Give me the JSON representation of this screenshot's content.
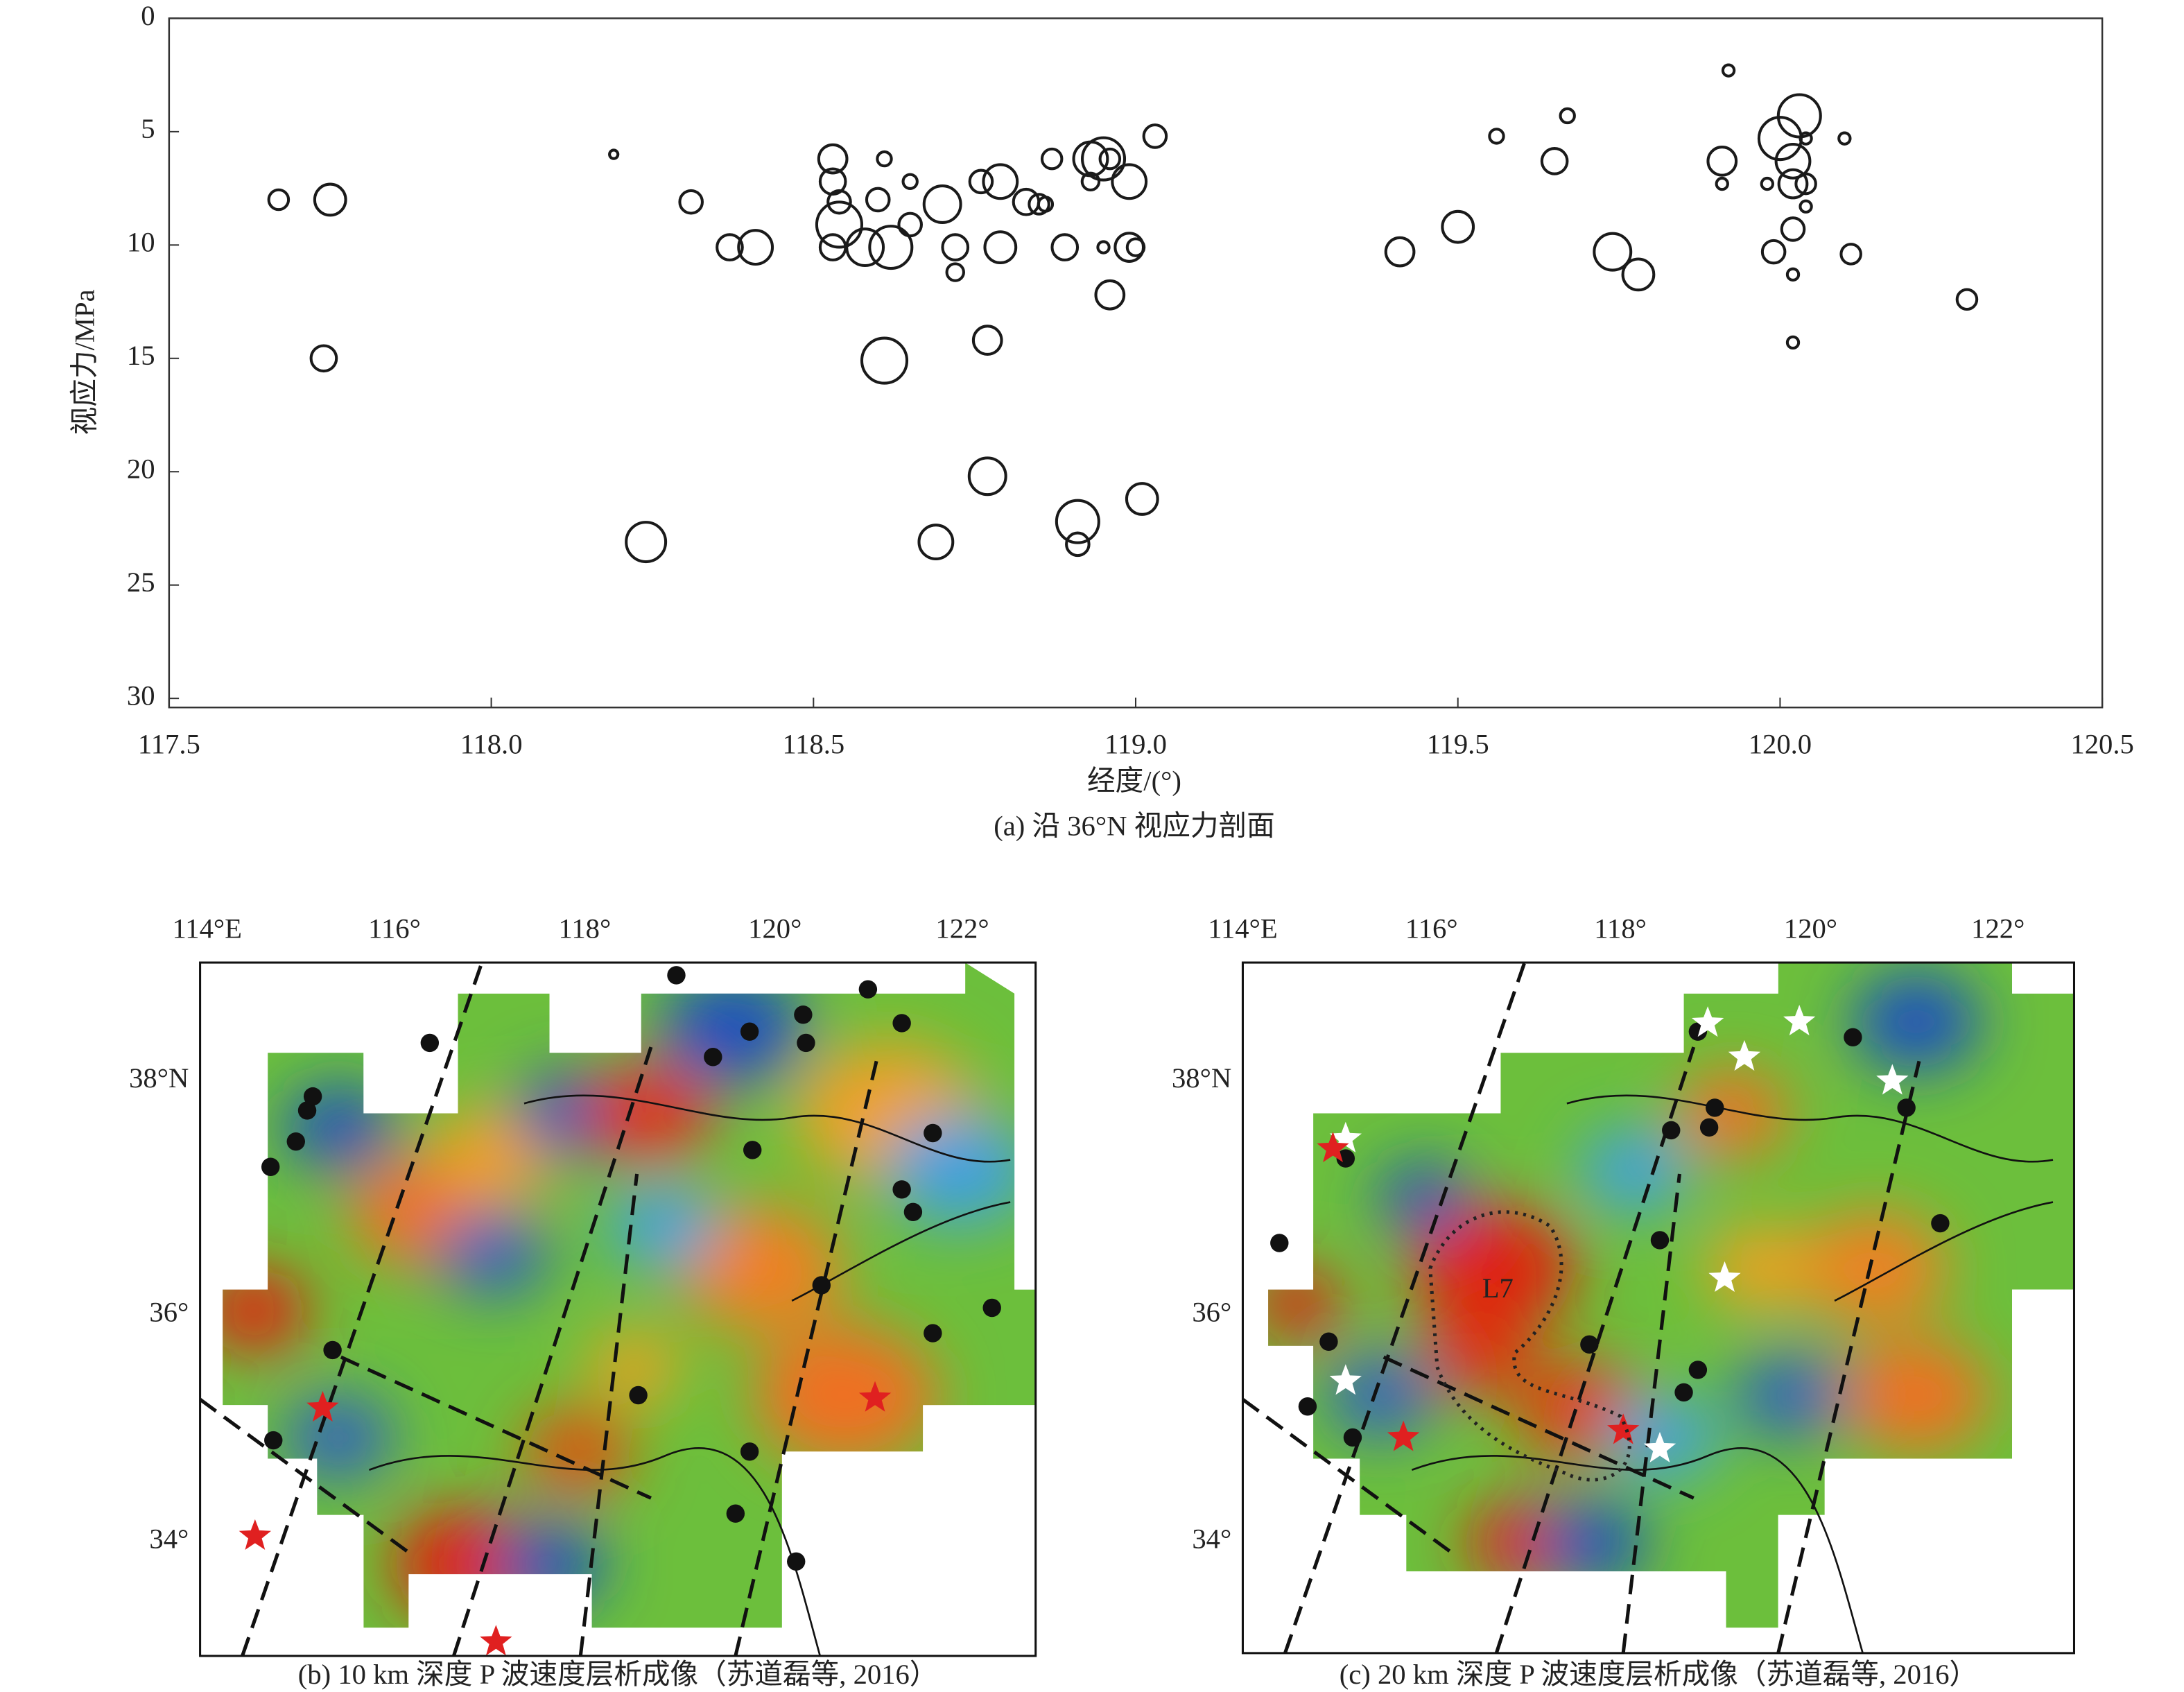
{
  "chart_data": {
    "type": "scatter",
    "caption": "(a) 沿 36°N 视应力剖面",
    "x_label": "经度/(°)",
    "y_label": "视应力/MPa",
    "xlim": [
      117.5,
      120.5
    ],
    "xticks": [
      117.5,
      {
        "value": 118,
        "label": "118.0"
      },
      118.5,
      {
        "value": 119,
        "label": "119.0"
      },
      119.5,
      {
        "value": 120,
        "label": "120.0"
      },
      120.5
    ],
    "ylim": [
      0,
      30.4
    ],
    "y_inverted": true,
    "yticks": [
      0,
      5,
      10,
      15,
      20,
      25,
      30
    ],
    "color": "#1a1a1a",
    "x": [
      117.67,
      117.75,
      117.74,
      118.19,
      118.24,
      118.31,
      118.37,
      118.41,
      118.53,
      118.53,
      118.54,
      118.53,
      118.54,
      118.58,
      118.62,
      118.6,
      118.61,
      118.65,
      118.65,
      118.7,
      118.61,
      118.72,
      118.72,
      118.76,
      118.79,
      118.79,
      118.77,
      118.77,
      118.69,
      118.83,
      118.85,
      118.86,
      118.87,
      118.89,
      118.93,
      118.95,
      118.93,
      118.96,
      118.95,
      118.96,
      118.99,
      118.99,
      119.0,
      119.03,
      119.01,
      118.91,
      118.91,
      119.41,
      119.5,
      119.56,
      119.67,
      119.65,
      119.74,
      119.78,
      119.92,
      119.91,
      119.91,
      120.03,
      120.0,
      120.02,
      120.02,
      120.02,
      119.99,
      120.02,
      120.02,
      120.04,
      120.04,
      120.1,
      119.98,
      120.04,
      120.11,
      120.29
    ],
    "values": [
      8.0,
      8.0,
      15.0,
      6.0,
      23.1,
      8.1,
      10.1,
      10.1,
      6.2,
      7.2,
      8.1,
      10.1,
      9.1,
      10.1,
      10.1,
      8.0,
      6.2,
      7.2,
      9.1,
      8.2,
      15.1,
      10.1,
      11.2,
      7.2,
      7.2,
      10.1,
      14.2,
      20.2,
      23.1,
      8.1,
      8.2,
      8.2,
      6.2,
      10.1,
      6.2,
      6.2,
      7.2,
      6.2,
      10.1,
      12.2,
      7.2,
      10.1,
      10.1,
      5.2,
      21.2,
      22.2,
      23.2,
      10.3,
      9.2,
      5.2,
      4.3,
      6.3,
      10.3,
      11.3,
      2.3,
      6.3,
      7.3,
      4.3,
      5.3,
      6.3,
      7.3,
      9.3,
      10.3,
      11.3,
      14.3,
      7.3,
      5.3,
      5.3,
      7.3,
      8.3,
      10.4,
      12.4
    ],
    "sizes": [
      7,
      11,
      9,
      3,
      14,
      8,
      9,
      12,
      10,
      9,
      8,
      9,
      16,
      13,
      15,
      8,
      5,
      5,
      8,
      13,
      16,
      9,
      6,
      8,
      12,
      11,
      10,
      13,
      12,
      9,
      7,
      5,
      7,
      9,
      12,
      15,
      6,
      7,
      4,
      10,
      12,
      10,
      6,
      8,
      11,
      15,
      8,
      10,
      11,
      5,
      5,
      9,
      13,
      11,
      4,
      10,
      4,
      15,
      15,
      12,
      10,
      8,
      8,
      4,
      4,
      7,
      4,
      4,
      4,
      4,
      7,
      7
    ]
  },
  "maps": [
    {
      "caption": "(b) 10 km 深度 P 波速度层析成像（苏道磊等, 2016）",
      "lon_labels": [
        "114°E",
        "116°",
        "118°",
        "120°",
        "122°"
      ],
      "lat_labels": [
        "38°N",
        "36°",
        "34°"
      ]
    },
    {
      "caption": "(c) 20 km 深度 P 波速度层析成像（苏道磊等, 2016）",
      "lon_labels": [
        "114°E",
        "116°",
        "118°",
        "120°",
        "122°"
      ],
      "lat_labels": [
        "38°N",
        "36°",
        "34°"
      ],
      "annotation": "L7"
    }
  ]
}
